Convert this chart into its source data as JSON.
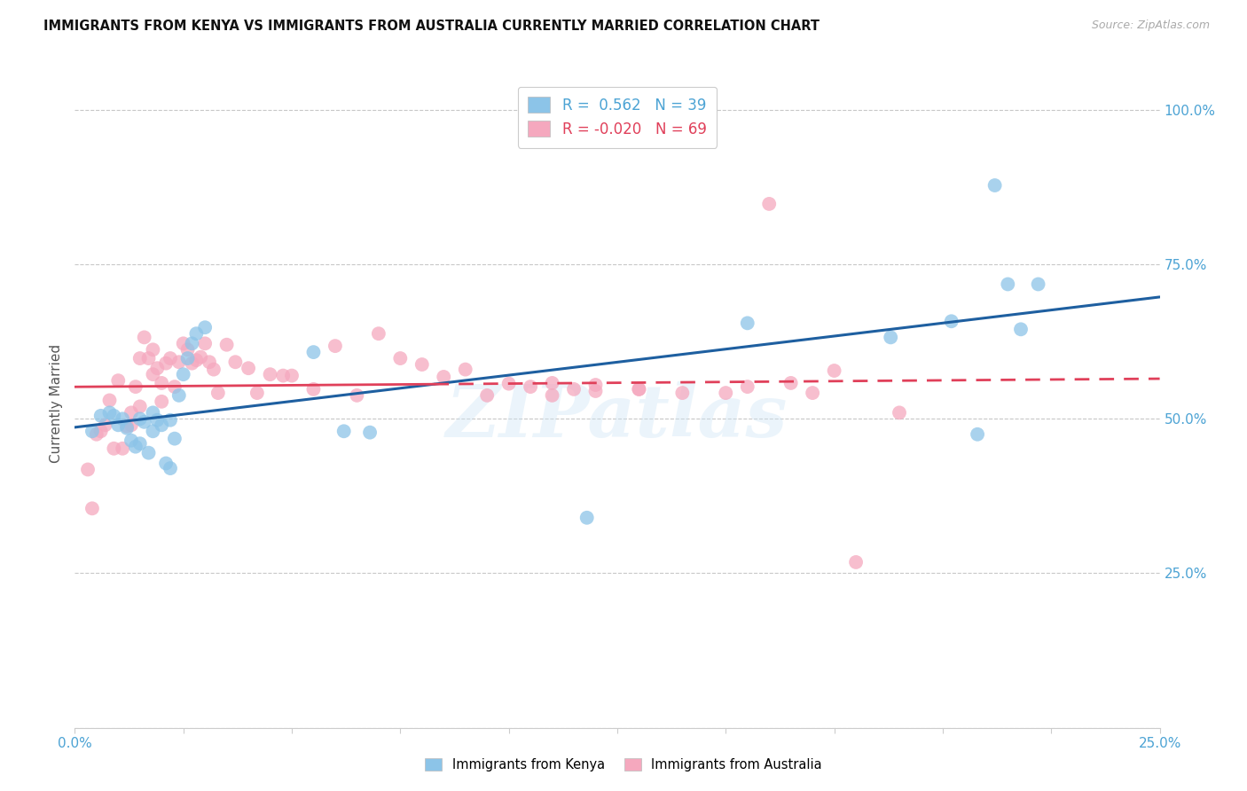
{
  "title": "IMMIGRANTS FROM KENYA VS IMMIGRANTS FROM AUSTRALIA CURRENTLY MARRIED CORRELATION CHART",
  "source": "Source: ZipAtlas.com",
  "ylabel": "Currently Married",
  "xlim": [
    0.0,
    0.25
  ],
  "ylim": [
    0.0,
    1.05
  ],
  "yticks": [
    0.0,
    0.25,
    0.5,
    0.75,
    1.0
  ],
  "ytick_labels_right": [
    "",
    "25.0%",
    "50.0%",
    "75.0%",
    "100.0%"
  ],
  "xtick_left_label": "0.0%",
  "xtick_right_label": "25.0%",
  "xticks": [
    0.0,
    0.025,
    0.05,
    0.075,
    0.1,
    0.125,
    0.15,
    0.175,
    0.2,
    0.225,
    0.25
  ],
  "legend_kenya_r": "0.562",
  "legend_kenya_n": "39",
  "legend_aus_r": "-0.020",
  "legend_aus_n": "69",
  "kenya_color": "#8cc4e8",
  "australia_color": "#f5a8be",
  "kenya_line_color": "#1e5fa0",
  "australia_line_color": "#e0405a",
  "watermark_text": "ZIPatlas",
  "kenya_scatter_x": [
    0.004,
    0.006,
    0.008,
    0.009,
    0.01,
    0.011,
    0.012,
    0.013,
    0.014,
    0.015,
    0.015,
    0.016,
    0.017,
    0.018,
    0.018,
    0.019,
    0.02,
    0.021,
    0.022,
    0.022,
    0.023,
    0.024,
    0.025,
    0.026,
    0.027,
    0.028,
    0.03,
    0.055,
    0.062,
    0.068,
    0.118,
    0.155,
    0.188,
    0.202,
    0.208,
    0.212,
    0.215,
    0.218,
    0.222
  ],
  "kenya_scatter_y": [
    0.48,
    0.505,
    0.51,
    0.505,
    0.49,
    0.5,
    0.485,
    0.465,
    0.455,
    0.46,
    0.5,
    0.495,
    0.445,
    0.48,
    0.51,
    0.498,
    0.49,
    0.428,
    0.42,
    0.498,
    0.468,
    0.538,
    0.572,
    0.598,
    0.622,
    0.638,
    0.648,
    0.608,
    0.48,
    0.478,
    0.34,
    0.655,
    0.632,
    0.658,
    0.475,
    0.878,
    0.718,
    0.645,
    0.718
  ],
  "australia_scatter_x": [
    0.003,
    0.004,
    0.005,
    0.006,
    0.007,
    0.008,
    0.009,
    0.01,
    0.011,
    0.012,
    0.013,
    0.013,
    0.014,
    0.015,
    0.015,
    0.016,
    0.017,
    0.018,
    0.018,
    0.019,
    0.02,
    0.02,
    0.021,
    0.022,
    0.023,
    0.024,
    0.025,
    0.026,
    0.027,
    0.028,
    0.029,
    0.03,
    0.031,
    0.032,
    0.033,
    0.035,
    0.037,
    0.04,
    0.042,
    0.045,
    0.048,
    0.05,
    0.055,
    0.06,
    0.065,
    0.07,
    0.075,
    0.08,
    0.085,
    0.09,
    0.095,
    0.1,
    0.105,
    0.11,
    0.115,
    0.12,
    0.13,
    0.14,
    0.15,
    0.155,
    0.16,
    0.165,
    0.17,
    0.175,
    0.18,
    0.19,
    0.11,
    0.12,
    0.13
  ],
  "australia_scatter_y": [
    0.418,
    0.355,
    0.475,
    0.48,
    0.49,
    0.53,
    0.452,
    0.562,
    0.452,
    0.488,
    0.49,
    0.51,
    0.552,
    0.52,
    0.598,
    0.632,
    0.598,
    0.572,
    0.612,
    0.582,
    0.528,
    0.558,
    0.59,
    0.598,
    0.552,
    0.592,
    0.622,
    0.612,
    0.59,
    0.595,
    0.6,
    0.622,
    0.592,
    0.58,
    0.542,
    0.62,
    0.592,
    0.582,
    0.542,
    0.572,
    0.57,
    0.57,
    0.548,
    0.618,
    0.538,
    0.638,
    0.598,
    0.588,
    0.568,
    0.58,
    0.538,
    0.557,
    0.552,
    0.558,
    0.548,
    0.555,
    0.548,
    0.542,
    0.542,
    0.552,
    0.848,
    0.558,
    0.542,
    0.578,
    0.268,
    0.51,
    0.538,
    0.545,
    0.548
  ]
}
